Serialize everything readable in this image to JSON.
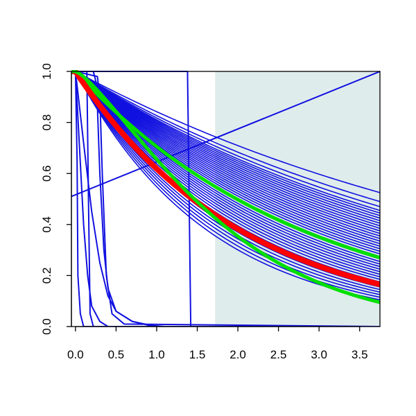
{
  "chart_data": {
    "type": "line",
    "title": "",
    "xlabel": "",
    "ylabel": "",
    "xlim": [
      -0.05,
      3.75
    ],
    "ylim": [
      0.0,
      1.0
    ],
    "x_ticks": [
      0.0,
      0.5,
      1.0,
      1.5,
      2.0,
      2.5,
      3.0,
      3.5
    ],
    "x_tick_labels": [
      "0.0",
      "0.5",
      "1.0",
      "1.5",
      "2.0",
      "2.5",
      "3.0",
      "3.5"
    ],
    "y_ticks": [
      0.0,
      0.2,
      0.4,
      0.6,
      0.8,
      1.0
    ],
    "y_tick_labels": [
      "0.0",
      "0.2",
      "0.4",
      "0.6",
      "0.8",
      "1.0"
    ],
    "grid": false,
    "legend": "none",
    "shaded_region": {
      "x": [
        1.72,
        3.75
      ],
      "y": [
        0.0,
        1.0
      ],
      "color": "#dfecec"
    },
    "colors": {
      "blue": "#1010e0",
      "red": "#ff0000",
      "green": "#00e000"
    },
    "decay_family": {
      "color": "#1010e0",
      "description_curves": "exponential survival-like curves starting at 1.0",
      "end_values_at_x_3_75": [
        0.525,
        0.49,
        0.47,
        0.455,
        0.445,
        0.435,
        0.425,
        0.415,
        0.405,
        0.395,
        0.385,
        0.375,
        0.365,
        0.355,
        0.345,
        0.335,
        0.325,
        0.315,
        0.305,
        0.295,
        0.285,
        0.275,
        0.265,
        0.255,
        0.245,
        0.235,
        0.225,
        0.215,
        0.205,
        0.195,
        0.185,
        0.175,
        0.165,
        0.155,
        0.145,
        0.135,
        0.125,
        0.115,
        0.105
      ]
    },
    "series": [
      {
        "color": "#1010e0",
        "width": 2,
        "kind": "line",
        "x": [
          -0.05,
          3.75
        ],
        "y": [
          0.51,
          1.0
        ]
      },
      {
        "color": "#1010e0",
        "width": 2,
        "kind": "step",
        "x": [
          -0.02,
          -0.02,
          1.38,
          1.42,
          3.75
        ],
        "y": [
          1.0,
          1.0,
          1.0,
          0.0,
          0.0
        ]
      },
      {
        "color": "#1010e0",
        "width": 2,
        "kind": "step",
        "x": [
          0.0,
          0.02,
          0.03,
          0.06,
          0.1,
          3.75
        ],
        "y": [
          1.0,
          0.65,
          0.2,
          0.05,
          0.0,
          0.0
        ]
      },
      {
        "color": "#1010e0",
        "width": 2,
        "kind": "step",
        "x": [
          0.0,
          0.14,
          0.16,
          0.18,
          0.22,
          3.75
        ],
        "y": [
          1.0,
          1.0,
          0.5,
          0.05,
          0.0,
          0.0
        ]
      },
      {
        "color": "#1010e0",
        "width": 2,
        "kind": "step",
        "x": [
          0.0,
          0.27,
          0.3,
          0.33,
          0.38,
          0.45,
          0.6,
          3.75
        ],
        "y": [
          1.0,
          0.98,
          0.9,
          0.6,
          0.2,
          0.05,
          0.01,
          0.0
        ]
      },
      {
        "color": "#1010e0",
        "width": 2,
        "kind": "curve",
        "x": [
          0.0,
          0.1,
          0.2,
          0.3,
          0.4,
          0.5,
          0.7,
          0.9,
          1.1,
          3.75
        ],
        "y": [
          1.0,
          0.72,
          0.45,
          0.25,
          0.12,
          0.06,
          0.02,
          0.005,
          0.0,
          0.0
        ]
      },
      {
        "color": "#1010e0",
        "width": 2,
        "kind": "curve",
        "x": [
          0.0,
          0.05,
          0.1,
          0.15,
          0.2,
          0.3,
          0.4,
          3.75
        ],
        "y": [
          1.0,
          0.7,
          0.4,
          0.2,
          0.08,
          0.02,
          0.0,
          0.0
        ]
      },
      {
        "color": "#1010e0",
        "width": 2,
        "kind": "curve",
        "x": [
          0.22,
          0.26,
          0.3,
          0.35,
          0.4,
          0.5,
          0.7,
          1.0,
          3.75
        ],
        "y": [
          1.0,
          0.95,
          0.6,
          0.3,
          0.15,
          0.06,
          0.02,
          0.0,
          0.0
        ]
      },
      {
        "color": "#00e000",
        "width": 5,
        "kind": "decay",
        "x": [
          -0.05,
          3.75
        ],
        "end_value": 0.27
      },
      {
        "color": "#ff0000",
        "width": 8,
        "kind": "decay",
        "x": [
          -0.05,
          3.75
        ],
        "end_value": 0.165
      },
      {
        "color": "#00e000",
        "width": 5,
        "kind": "gompertz",
        "x": [
          -0.05,
          3.75
        ],
        "end_value": 0.095
      }
    ]
  }
}
